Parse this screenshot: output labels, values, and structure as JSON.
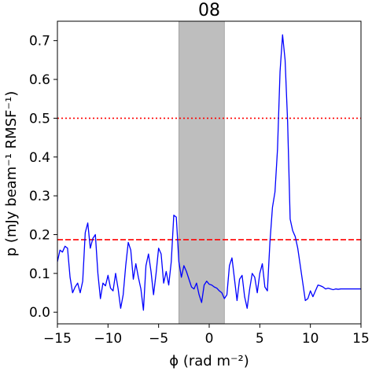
{
  "chart_data": {
    "type": "line",
    "title": "08",
    "xlabel": "ϕ (rad m⁻²)",
    "ylabel": "p (mJy beam⁻¹ RMSF⁻¹)",
    "xlim": [
      -15,
      15
    ],
    "ylim": [
      -0.03,
      0.75
    ],
    "xticks": [
      -15,
      -10,
      -5,
      0,
      5,
      10,
      15
    ],
    "xtick_labels": [
      "−15",
      "−10",
      "−5",
      "0",
      "5",
      "10",
      "15"
    ],
    "yticks": [
      0.0,
      0.1,
      0.2,
      0.3,
      0.4,
      0.5,
      0.6,
      0.7
    ],
    "ytick_labels": [
      "0.0",
      "0.1",
      "0.2",
      "0.3",
      "0.4",
      "0.5",
      "0.6",
      "0.7"
    ],
    "grid": false,
    "shaded_region": {
      "x": [
        -3.0,
        1.5
      ],
      "color": "#bebebe"
    },
    "hlines": [
      {
        "y": 0.5,
        "style": "dotted",
        "color": "#ff0000"
      },
      {
        "y": 0.187,
        "style": "dashed",
        "color": "#ff0000"
      }
    ],
    "series": [
      {
        "color": "#0000ff",
        "x": [
          -15.0,
          -14.75,
          -14.5,
          -14.25,
          -14.0,
          -13.75,
          -13.5,
          -13.25,
          -13.0,
          -12.75,
          -12.5,
          -12.25,
          -12.0,
          -11.75,
          -11.5,
          -11.25,
          -11.0,
          -10.75,
          -10.5,
          -10.25,
          -10.0,
          -9.75,
          -9.5,
          -9.25,
          -9.0,
          -8.75,
          -8.5,
          -8.25,
          -8.0,
          -7.75,
          -7.5,
          -7.25,
          -7.0,
          -6.75,
          -6.5,
          -6.25,
          -6.0,
          -5.75,
          -5.5,
          -5.25,
          -5.0,
          -4.75,
          -4.5,
          -4.25,
          -4.0,
          -3.75,
          -3.5,
          -3.25,
          -3.0,
          -2.75,
          -2.5,
          -2.25,
          -2.0,
          -1.75,
          -1.5,
          -1.25,
          -1.0,
          -0.75,
          -0.5,
          -0.25,
          0.0,
          0.25,
          0.5,
          0.75,
          1.0,
          1.25,
          1.5,
          1.75,
          2.0,
          2.25,
          2.5,
          2.75,
          3.0,
          3.25,
          3.5,
          3.75,
          4.0,
          4.25,
          4.5,
          4.75,
          5.0,
          5.25,
          5.5,
          5.75,
          6.0,
          6.25,
          6.5,
          6.75,
          7.0,
          7.25,
          7.5,
          7.75,
          8.0,
          8.25,
          8.5,
          8.75,
          9.0,
          9.25,
          9.5,
          9.75,
          10.0,
          10.25,
          10.5,
          10.75,
          11.0,
          11.25,
          11.5,
          11.75,
          12.0,
          12.25,
          12.5,
          12.75,
          13.0,
          13.25,
          13.5,
          13.75,
          14.0,
          14.25,
          14.5,
          14.75,
          15.0
        ],
        "y": [
          0.13,
          0.16,
          0.155,
          0.17,
          0.165,
          0.09,
          0.05,
          0.065,
          0.075,
          0.05,
          0.08,
          0.205,
          0.23,
          0.165,
          0.19,
          0.2,
          0.1,
          0.035,
          0.075,
          0.068,
          0.095,
          0.062,
          0.055,
          0.1,
          0.06,
          0.01,
          0.045,
          0.12,
          0.18,
          0.16,
          0.085,
          0.125,
          0.09,
          0.06,
          0.005,
          0.12,
          0.15,
          0.105,
          0.045,
          0.1,
          0.165,
          0.15,
          0.075,
          0.105,
          0.07,
          0.13,
          0.25,
          0.245,
          0.13,
          0.09,
          0.12,
          0.105,
          0.085,
          0.065,
          0.06,
          0.075,
          0.045,
          0.025,
          0.07,
          0.08,
          0.072,
          0.07,
          0.065,
          0.062,
          0.055,
          0.05,
          0.035,
          0.045,
          0.12,
          0.14,
          0.085,
          0.03,
          0.085,
          0.095,
          0.04,
          0.01,
          0.06,
          0.1,
          0.09,
          0.05,
          0.1,
          0.125,
          0.065,
          0.055,
          0.18,
          0.27,
          0.31,
          0.42,
          0.62,
          0.715,
          0.65,
          0.49,
          0.24,
          0.21,
          0.195,
          0.165,
          0.12,
          0.075,
          0.03,
          0.035,
          0.055,
          0.04,
          0.055,
          0.07,
          0.068,
          0.065,
          0.06,
          0.062,
          0.06,
          0.058,
          0.06,
          0.059,
          0.06,
          0.06,
          0.06,
          0.06,
          0.06,
          0.06,
          0.06,
          0.06,
          0.06
        ]
      }
    ]
  }
}
